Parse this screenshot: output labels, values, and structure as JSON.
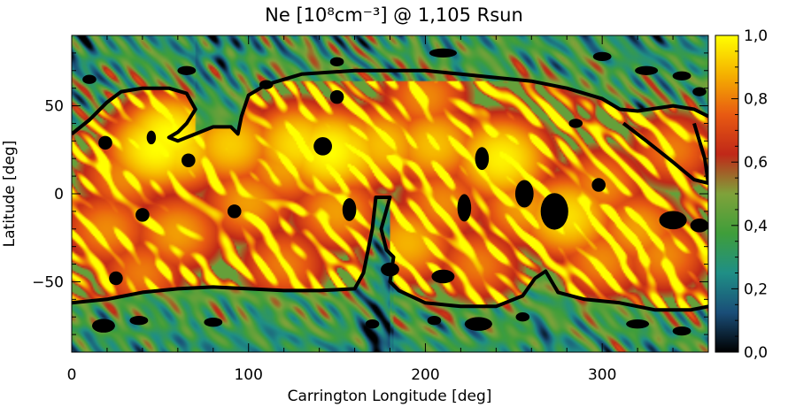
{
  "chart_data": {
    "type": "heatmap",
    "title": "Ne [10⁸cm⁻³] @ 1,105 Rsun",
    "xlabel": "Carrington Longitude [deg]",
    "ylabel": "Latitude [deg]",
    "xlim": [
      0,
      360
    ],
    "ylim": [
      -90,
      90
    ],
    "x_ticks": [
      "0",
      "100",
      "200",
      "300"
    ],
    "x_tick_values": [
      0,
      100,
      200,
      300
    ],
    "y_ticks": [
      "50",
      "0",
      "−50"
    ],
    "y_tick_values": [
      50,
      0,
      -50
    ],
    "colorbar": {
      "range": [
        0.0,
        1.0
      ],
      "ticks": [
        "1,0",
        "0,8",
        "0,6",
        "0,4",
        "0,2",
        "0,0"
      ],
      "tick_values": [
        1.0,
        0.8,
        0.6,
        0.4,
        0.2,
        0.0
      ],
      "colormap": [
        "#000000",
        "#1a4e78",
        "#1f8f86",
        "#3f9e3a",
        "#7fa23a",
        "#c02818",
        "#e85a12",
        "#f5b000",
        "#ffff00"
      ]
    },
    "boundary_north": [
      [
        0,
        34
      ],
      [
        10,
        42
      ],
      [
        20,
        52
      ],
      [
        28,
        58
      ],
      [
        40,
        60
      ],
      [
        55,
        60
      ],
      [
        65,
        57
      ],
      [
        70,
        48
      ],
      [
        65,
        40
      ],
      [
        60,
        35
      ],
      [
        55,
        32
      ],
      [
        60,
        30
      ],
      [
        70,
        34
      ],
      [
        80,
        38
      ],
      [
        90,
        38
      ],
      [
        94,
        34
      ],
      [
        96,
        44
      ],
      [
        100,
        56
      ],
      [
        110,
        62
      ],
      [
        130,
        68
      ],
      [
        160,
        70
      ],
      [
        180,
        70
      ],
      [
        200,
        70
      ],
      [
        220,
        68
      ],
      [
        240,
        66
      ],
      [
        260,
        64
      ],
      [
        280,
        60
      ],
      [
        300,
        54
      ],
      [
        310,
        48
      ],
      [
        320,
        47
      ],
      [
        340,
        50
      ],
      [
        352,
        48
      ],
      [
        360,
        44
      ]
    ],
    "boundary_south": [
      [
        0,
        -62
      ],
      [
        20,
        -60
      ],
      [
        40,
        -56
      ],
      [
        60,
        -54
      ],
      [
        80,
        -53
      ],
      [
        100,
        -54
      ],
      [
        120,
        -55
      ],
      [
        140,
        -55
      ],
      [
        160,
        -54
      ],
      [
        165,
        -45
      ],
      [
        170,
        -20
      ],
      [
        172,
        -2
      ],
      [
        180,
        -2
      ],
      [
        175,
        -20
      ],
      [
        178,
        -32
      ],
      [
        182,
        -36
      ],
      [
        180,
        -50
      ],
      [
        185,
        -55
      ],
      [
        200,
        -62
      ],
      [
        220,
        -64
      ],
      [
        240,
        -64
      ],
      [
        255,
        -58
      ],
      [
        262,
        -48
      ],
      [
        268,
        -44
      ],
      [
        275,
        -56
      ],
      [
        290,
        -60
      ],
      [
        310,
        -62
      ],
      [
        330,
        -66
      ],
      [
        350,
        -66
      ],
      [
        360,
        -64
      ]
    ],
    "boundary_right_lobe": [
      [
        312,
        40
      ],
      [
        325,
        30
      ],
      [
        340,
        18
      ],
      [
        352,
        8
      ],
      [
        360,
        6
      ],
      [
        358,
        20
      ],
      [
        352,
        40
      ]
    ],
    "hot_spots": [
      [
        48,
        26,
        1.0
      ],
      [
        55,
        33,
        1.0
      ],
      [
        60,
        25,
        0.95
      ],
      [
        90,
        28,
        0.92
      ],
      [
        128,
        28,
        0.95
      ],
      [
        146,
        24,
        1.0
      ],
      [
        155,
        24,
        0.95
      ],
      [
        176,
        28,
        0.9
      ],
      [
        205,
        28,
        0.9
      ],
      [
        243,
        20,
        0.98
      ],
      [
        280,
        -13,
        0.95
      ],
      [
        190,
        -28,
        0.88
      ],
      [
        150,
        -10,
        0.85
      ],
      [
        255,
        -8,
        0.85
      ],
      [
        60,
        -22,
        0.85
      ],
      [
        100,
        -5,
        0.85
      ],
      [
        20,
        -20,
        0.82
      ],
      [
        320,
        -20,
        0.85
      ],
      [
        335,
        -35,
        0.82
      ],
      [
        300,
        -38,
        0.82
      ],
      [
        120,
        -40,
        0.8
      ],
      [
        40,
        -45,
        0.8
      ],
      [
        230,
        -40,
        0.8
      ],
      [
        210,
        -5,
        0.82
      ],
      [
        300,
        5,
        0.82
      ],
      [
        30,
        10,
        0.82
      ],
      [
        120,
        15,
        0.85
      ],
      [
        340,
        25,
        0.8
      ],
      [
        80,
        55,
        0.82
      ],
      [
        200,
        55,
        0.82
      ]
    ],
    "coronal_holes": [
      [
        19,
        29,
        3,
        3
      ],
      [
        45,
        32,
        2,
        3
      ],
      [
        66,
        19,
        3,
        3
      ],
      [
        142,
        27,
        4,
        4
      ],
      [
        157,
        -9,
        3,
        5
      ],
      [
        180,
        -43,
        4,
        3
      ],
      [
        222,
        -8,
        3,
        6
      ],
      [
        232,
        20,
        3,
        5
      ],
      [
        256,
        0,
        4,
        6
      ],
      [
        273,
        -10,
        6,
        8
      ],
      [
        340,
        -15,
        6,
        4
      ],
      [
        355,
        -18,
        4,
        3
      ],
      [
        210,
        -47,
        5,
        3
      ],
      [
        40,
        -12,
        3,
        3
      ],
      [
        92,
        -10,
        3,
        3
      ],
      [
        298,
        5,
        3,
        3
      ],
      [
        285,
        40,
        3,
        2
      ],
      [
        25,
        -48,
        3,
        3
      ],
      [
        150,
        55,
        3,
        3
      ]
    ],
    "polar_holes": [
      [
        18,
        -75,
        5,
        3
      ],
      [
        38,
        -72,
        4,
        2
      ],
      [
        80,
        -73,
        4,
        2
      ],
      [
        170,
        -74,
        3,
        2
      ],
      [
        205,
        -72,
        3,
        2
      ],
      [
        230,
        -74,
        6,
        3
      ],
      [
        255,
        -70,
        3,
        2
      ],
      [
        320,
        -74,
        5,
        2
      ],
      [
        345,
        -78,
        4,
        2
      ],
      [
        150,
        75,
        3,
        2
      ],
      [
        210,
        80,
        6,
        2
      ],
      [
        300,
        78,
        4,
        2
      ],
      [
        325,
        70,
        5,
        2
      ],
      [
        345,
        67,
        4,
        2
      ],
      [
        355,
        58,
        3,
        2
      ],
      [
        10,
        65,
        3,
        2
      ],
      [
        65,
        70,
        4,
        2
      ],
      [
        110,
        62,
        3,
        2
      ]
    ]
  }
}
